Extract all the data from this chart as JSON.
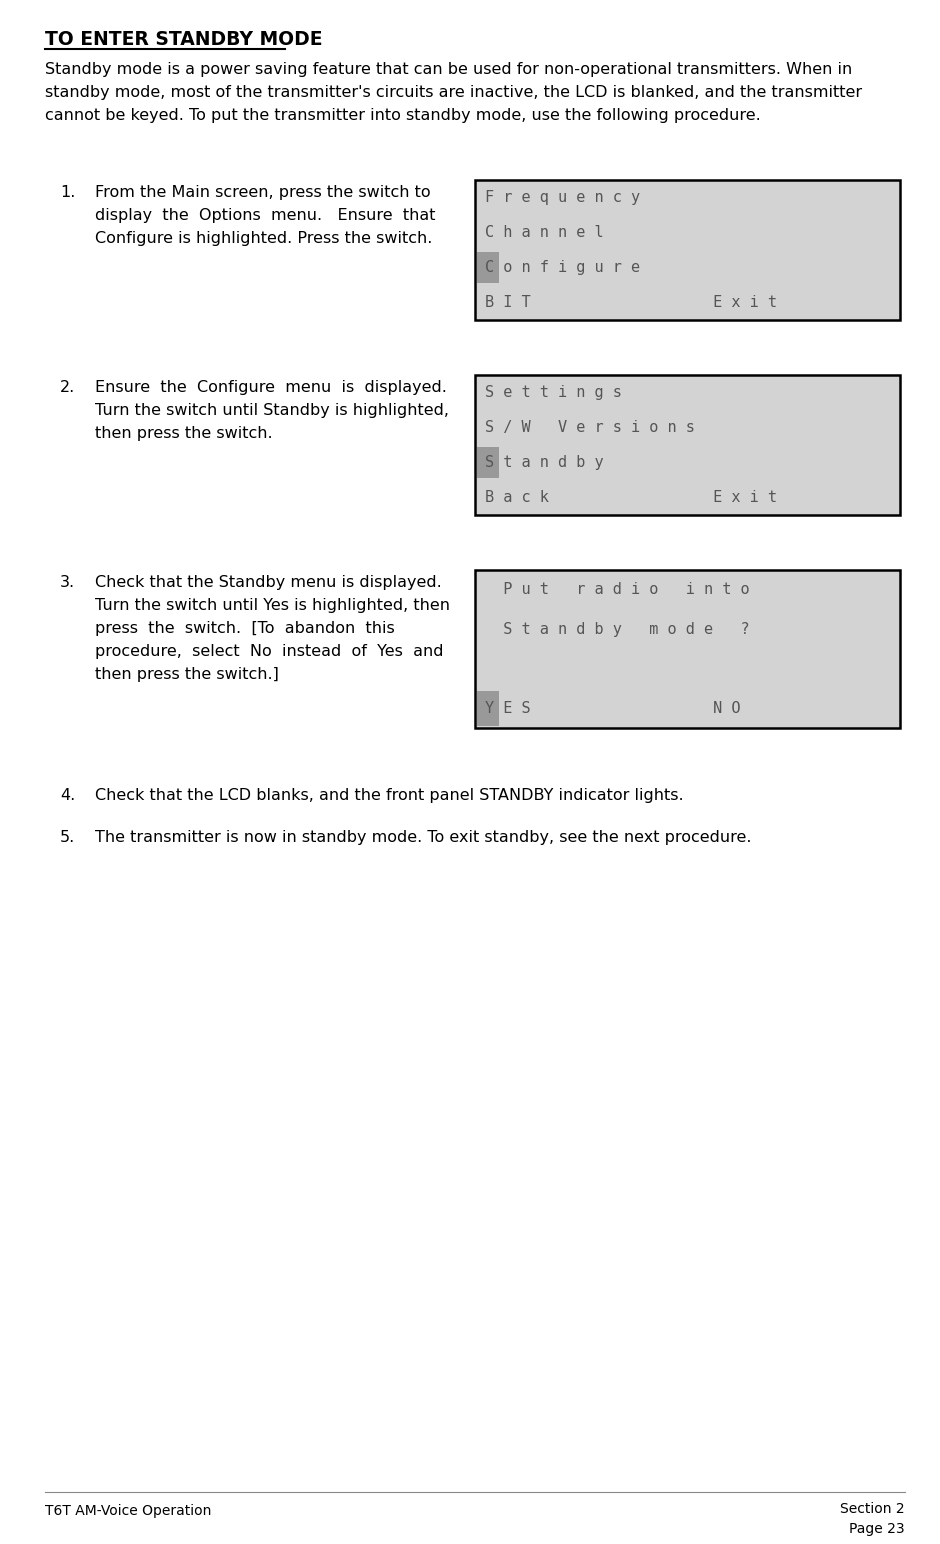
{
  "title": "TO ENTER STANDBY MODE",
  "intro_lines": [
    "Standby mode is a power saving feature that can be used for non-operational transmitters. When in",
    "standby mode, most of the transmitter's circuits are inactive, the LCD is blanked, and the transmitter",
    "cannot be keyed. To put the transmitter into standby mode, use the following procedure."
  ],
  "steps": [
    {
      "num": "1.",
      "text_lines": [
        "From the Main screen, press the switch to",
        "display  the  Options  menu.   Ensure  that",
        "Configure is highlighted. Press the switch."
      ],
      "lcd": {
        "lines": [
          {
            "text": "F r e q u e n c y",
            "highlight": false
          },
          {
            "text": "C h a n n e l",
            "highlight": false
          },
          {
            "text": "C o n f i g u r e",
            "highlight": true
          },
          {
            "text": "B I T                    E x i t",
            "highlight": false
          }
        ]
      }
    },
    {
      "num": "2.",
      "text_lines": [
        "Ensure  the  Configure  menu  is  displayed.",
        "Turn the switch until Standby is highlighted,",
        "then press the switch."
      ],
      "lcd": {
        "lines": [
          {
            "text": "S e t t i n g s",
            "highlight": false
          },
          {
            "text": "S / W   V e r s i o n s",
            "highlight": false
          },
          {
            "text": "S t a n d b y",
            "highlight": true
          },
          {
            "text": "B a c k                  E x i t",
            "highlight": false
          }
        ]
      }
    },
    {
      "num": "3.",
      "text_lines": [
        "Check that the Standby menu is displayed.",
        "Turn the switch until Yes is highlighted, then",
        "press  the  switch.  [To  abandon  this",
        "procedure,  select  No  instead  of  Yes  and",
        "then press the switch.]"
      ],
      "lcd": {
        "lines": [
          {
            "text": "  P u t   r a d i o   i n t o",
            "highlight": false
          },
          {
            "text": "  S t a n d b y   m o d e   ?",
            "highlight": false
          },
          {
            "text": "",
            "highlight": false
          },
          {
            "text": "Y E S                    N O",
            "highlight": "yes"
          }
        ]
      }
    }
  ],
  "simple_steps": [
    {
      "num": "4.",
      "text": "Check that the LCD blanks, and the front panel STANDBY indicator lights."
    },
    {
      "num": "5.",
      "text": "The transmitter is now in standby mode. To exit standby, see the next procedure."
    }
  ],
  "footer_left": "T6T AM-Voice Operation",
  "footer_right_line1": "Section 2",
  "footer_right_line2": "Page 23",
  "bg_color": "#ffffff",
  "lcd_bg": "#d3d3d3",
  "highlight_color": "#999999",
  "text_color": "#000000",
  "lcd_text_color": "#555555",
  "border_color": "#000000"
}
